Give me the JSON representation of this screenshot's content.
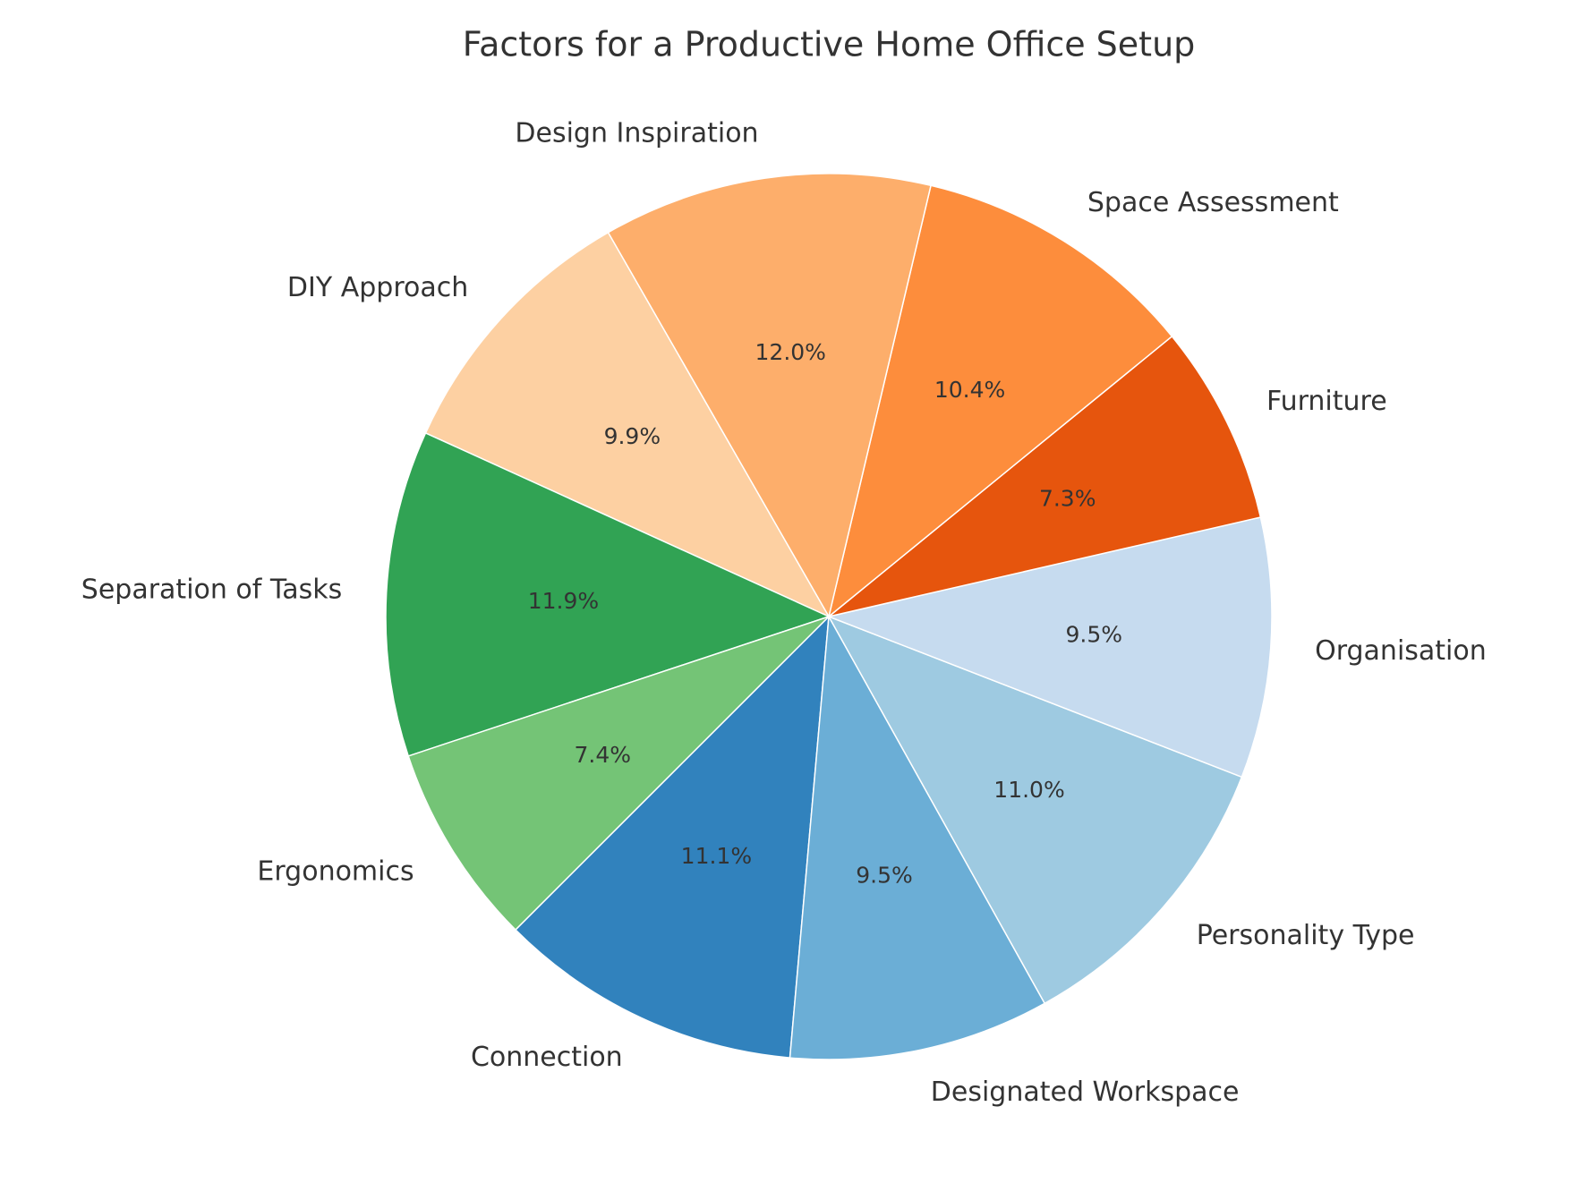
{
  "chart_data": {
    "type": "pie",
    "title": "Factors for a Productive Home Office Setup",
    "start_angle_deg": 225,
    "direction": "counterclockwise",
    "legend": "none",
    "slices": [
      {
        "label": "Connection",
        "value": 11.1,
        "pct_label": "11.1%",
        "color": "#3182bd"
      },
      {
        "label": "Designated Workspace",
        "value": 9.5,
        "pct_label": "9.5%",
        "color": "#6baed6"
      },
      {
        "label": "Personality Type",
        "value": 11.0,
        "pct_label": "11.0%",
        "color": "#9ecae1"
      },
      {
        "label": "Organisation",
        "value": 9.5,
        "pct_label": "9.5%",
        "color": "#c6dbef"
      },
      {
        "label": "Furniture",
        "value": 7.3,
        "pct_label": "7.3%",
        "color": "#e6550d"
      },
      {
        "label": "Space Assessment",
        "value": 10.4,
        "pct_label": "10.4%",
        "color": "#fd8d3c"
      },
      {
        "label": "Design Inspiration",
        "value": 12.0,
        "pct_label": "12.0%",
        "color": "#fdae6b"
      },
      {
        "label": "DIY Approach",
        "value": 9.9,
        "pct_label": "9.9%",
        "color": "#fdd0a2"
      },
      {
        "label": "Separation of Tasks",
        "value": 11.9,
        "pct_label": "11.9%",
        "color": "#31a354"
      },
      {
        "label": "Ergonomics",
        "value": 7.4,
        "pct_label": "7.4%",
        "color": "#74c476"
      }
    ]
  }
}
